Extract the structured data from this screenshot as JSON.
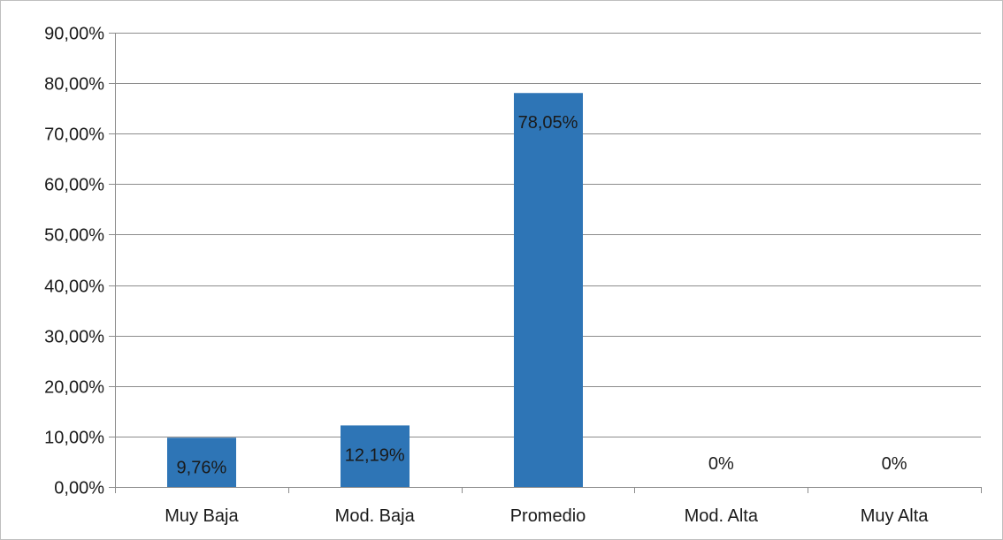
{
  "chart_data": {
    "type": "bar",
    "categories": [
      "Muy Baja",
      "Mod. Baja",
      "Promedio",
      "Mod. Alta",
      "Muy Alta"
    ],
    "values": [
      9.76,
      12.19,
      78.05,
      0,
      0
    ],
    "data_labels": [
      "9,76%",
      "12,19%",
      "78,05%",
      "0%",
      "0%"
    ],
    "ylim": [
      0,
      90
    ],
    "y_ticks": [
      0,
      10,
      20,
      30,
      40,
      50,
      60,
      70,
      80,
      90
    ],
    "y_tick_labels": [
      "0,00%",
      "10,00%",
      "20,00%",
      "30,00%",
      "40,00%",
      "50,00%",
      "60,00%",
      "70,00%",
      "80,00%",
      "90,00%"
    ],
    "grid": true,
    "legend": "none",
    "bar_color": "#2e75b6",
    "title": "",
    "xlabel": "",
    "ylabel": ""
  }
}
